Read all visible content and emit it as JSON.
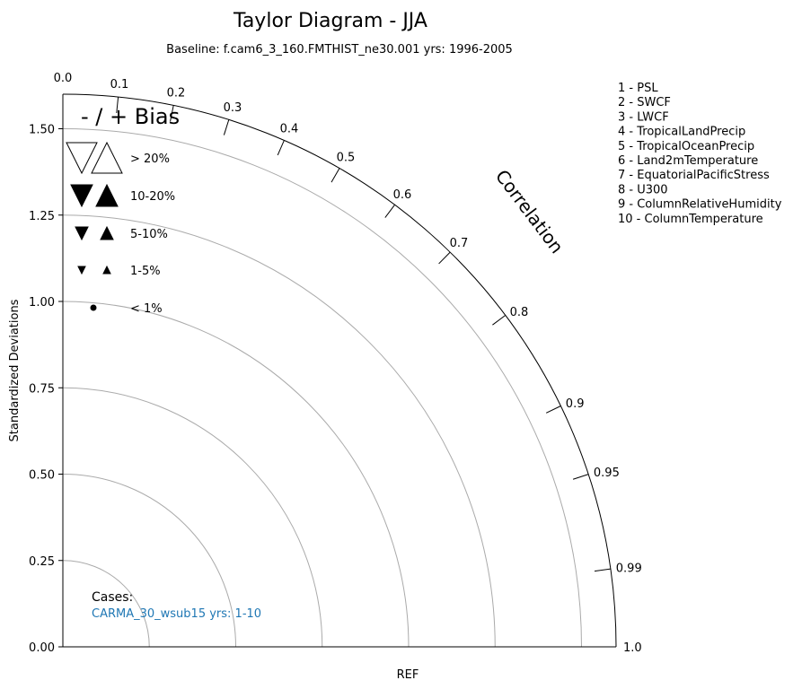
{
  "chart_data": {
    "type": "taylor",
    "title": "Taylor Diagram - JJA",
    "subtitle": "Baseline: f.cam6_3_160.FMTHIST_ne30.001  yrs: 1996-2005",
    "ylabel": "Standardized Deviations",
    "xlabel": "REF",
    "corr_label": "Correlation",
    "std_range": [
      0,
      1.6
    ],
    "std_ticks": [
      0.0,
      0.25,
      0.5,
      0.75,
      1.0,
      1.25,
      1.5
    ],
    "std_tick_labels": [
      "0.00",
      "0.25",
      "0.50",
      "0.75",
      "1.00",
      "1.25",
      "1.50"
    ],
    "std_arcs": [
      0.25,
      0.5,
      0.75,
      1.0,
      1.25,
      1.5
    ],
    "corr_ticks": [
      0.0,
      0.1,
      0.2,
      0.3,
      0.4,
      0.5,
      0.6,
      0.7,
      0.8,
      0.9,
      0.95,
      0.99,
      1.0
    ],
    "corr_tick_labels": [
      "0.0",
      "0.1",
      "0.2",
      "0.3",
      "0.4",
      "0.5",
      "0.6",
      "0.7",
      "0.8",
      "0.9",
      "0.95",
      "0.99",
      "1.0"
    ],
    "variables": [
      "1 - PSL",
      "2 - SWCF",
      "3 - LWCF",
      "4 - TropicalLandPrecip",
      "5 - TropicalOceanPrecip",
      "6 - Land2mTemperature",
      "7 - EquatorialPacificStress",
      "8 - U300",
      "9 - ColumnRelativeHumidity",
      "10 - ColumnTemperature"
    ],
    "bias_legend": {
      "title": "- / + Bias",
      "items": [
        {
          "label": "> 20%",
          "style": "open",
          "size": 4
        },
        {
          "label": "10-20%",
          "style": "filled",
          "size": 3
        },
        {
          "label": "5-10%",
          "style": "filled",
          "size": 2
        },
        {
          "label": "1-5%",
          "style": "filled",
          "size": 1
        },
        {
          "label": "< 1%",
          "style": "dot",
          "size": 0
        }
      ]
    },
    "cases": {
      "title": "Cases:",
      "items": [
        {
          "label": "CARMA_30_wsub15  yrs: 1-10",
          "color": "#1f77b4"
        }
      ]
    },
    "points": [],
    "colors": {
      "arc": "#aaaaaa",
      "axis": "#000000",
      "case": "#1f77b4"
    }
  }
}
